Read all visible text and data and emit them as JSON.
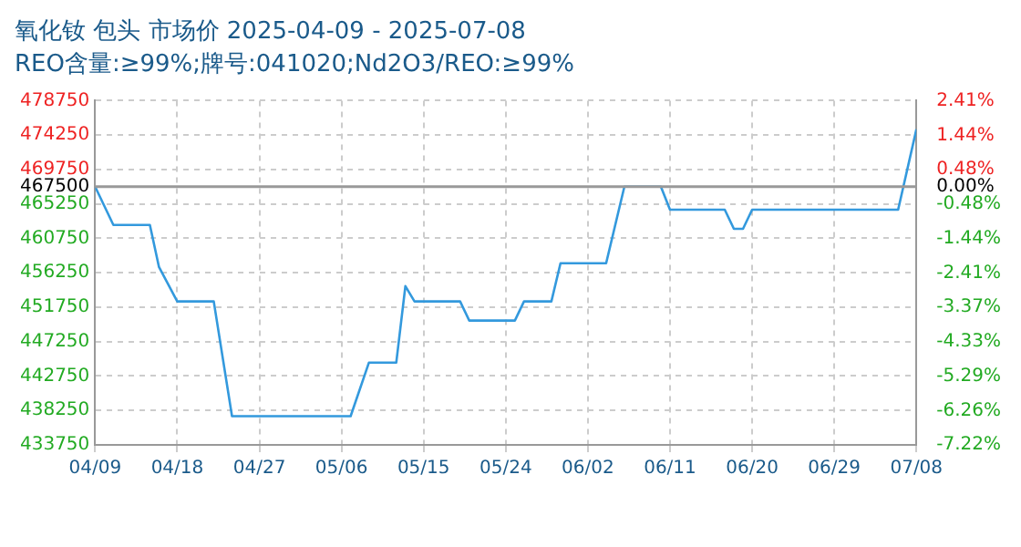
{
  "chart_data": {
    "type": "line",
    "title": "氧化钕 包头 市场价 2025-04-09 - 2025-07-08",
    "subtitle": "REO含量:≥99%;牌号:041020;Nd2O3/REO:≥99%",
    "x": [
      "2025-04-09",
      "2025-04-11",
      "2025-04-15",
      "2025-04-16",
      "2025-04-18",
      "2025-04-22",
      "2025-04-24",
      "2025-05-07",
      "2025-05-09",
      "2025-05-12",
      "2025-05-13",
      "2025-05-14",
      "2025-05-19",
      "2025-05-20",
      "2025-05-25",
      "2025-05-26",
      "2025-05-29",
      "2025-05-30",
      "2025-06-04",
      "2025-06-06",
      "2025-06-10",
      "2025-06-11",
      "2025-06-17",
      "2025-06-18",
      "2025-06-19",
      "2025-06-20",
      "2025-07-06",
      "2025-07-08"
    ],
    "series": [
      {
        "color": "#3399dd",
        "values": [
          467500,
          462500,
          462500,
          457000,
          452500,
          452500,
          437500,
          437500,
          444500,
          444500,
          454500,
          452500,
          452500,
          450000,
          450000,
          452500,
          452500,
          457500,
          457500,
          467500,
          467500,
          464500,
          464500,
          462000,
          462000,
          464500,
          464500,
          475000
        ]
      }
    ],
    "xlim": [
      "2025-04-09",
      "2025-07-08"
    ],
    "xticks": [
      {
        "value": "2025-04-09",
        "label": "04/09"
      },
      {
        "value": "2025-04-18",
        "label": "04/18"
      },
      {
        "value": "2025-04-27",
        "label": "04/27"
      },
      {
        "value": "2025-05-06",
        "label": "05/06"
      },
      {
        "value": "2025-05-15",
        "label": "05/15"
      },
      {
        "value": "2025-05-24",
        "label": "05/24"
      },
      {
        "value": "2025-06-02",
        "label": "06/02"
      },
      {
        "value": "2025-06-11",
        "label": "06/11"
      },
      {
        "value": "2025-06-20",
        "label": "06/20"
      },
      {
        "value": "2025-06-29",
        "label": "06/29"
      },
      {
        "value": "2025-07-08",
        "label": "07/08"
      }
    ],
    "ylim": [
      433750,
      478750
    ],
    "yticks": [
      433750,
      438250,
      442750,
      447250,
      451750,
      456250,
      460750,
      465250,
      467500,
      469750,
      474250,
      478750
    ],
    "y2lim": [
      -7.22,
      2.41
    ],
    "y2ticks": [
      {
        "value": -7.22,
        "label": "-7.22%"
      },
      {
        "value": -6.26,
        "label": "-6.26%"
      },
      {
        "value": -5.29,
        "label": "-5.29%"
      },
      {
        "value": -4.33,
        "label": "-4.33%"
      },
      {
        "value": -3.37,
        "label": "-3.37%"
      },
      {
        "value": -2.41,
        "label": "-2.41%"
      },
      {
        "value": -1.44,
        "label": "-1.44%"
      },
      {
        "value": -0.48,
        "label": "-0.48%"
      },
      {
        "value": 0,
        "label": "0.00%"
      },
      {
        "value": 0.48,
        "label": "0.48%"
      },
      {
        "value": 1.44,
        "label": "1.44%"
      },
      {
        "value": 2.41,
        "label": "2.41%"
      }
    ],
    "ref_lines": [
      {
        "axis": "y",
        "value": 467500,
        "color": "#999999"
      }
    ],
    "grid": true,
    "legend": false,
    "marker": "none",
    "line_style": "solid"
  }
}
